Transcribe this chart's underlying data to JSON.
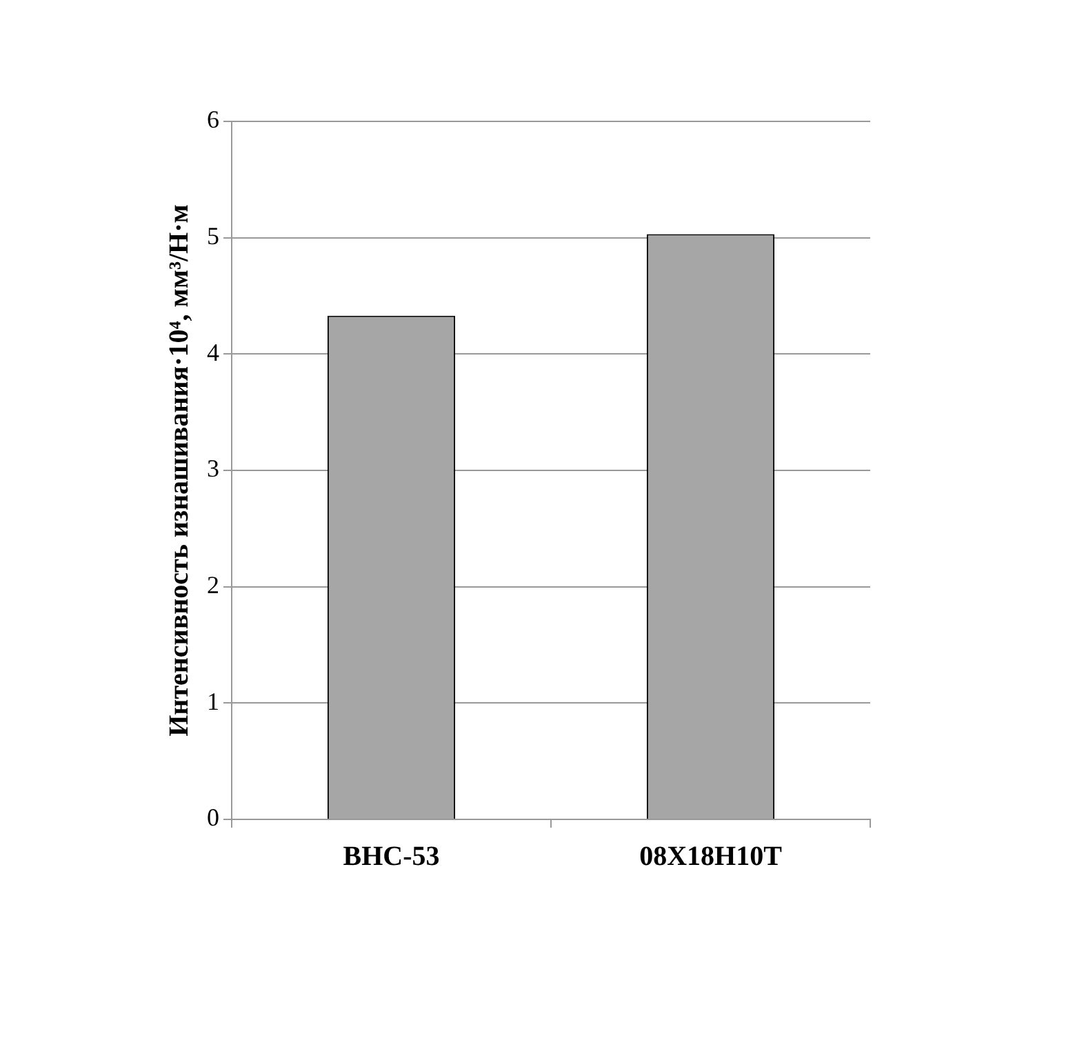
{
  "chart_data": {
    "type": "bar",
    "ylabel": "Интенсивность изнашивания·10⁴, мм³/Н·м",
    "categories": [
      "ВНС-53",
      "08Х18Н10Т"
    ],
    "series": [
      {
        "color": "#a6a6a6",
        "values": [
          4.33,
          5.03
        ]
      }
    ],
    "ylim": [
      0,
      6
    ],
    "yticks": [
      0,
      1,
      2,
      3,
      4,
      5,
      6
    ],
    "grid": "y",
    "legend": false
  }
}
